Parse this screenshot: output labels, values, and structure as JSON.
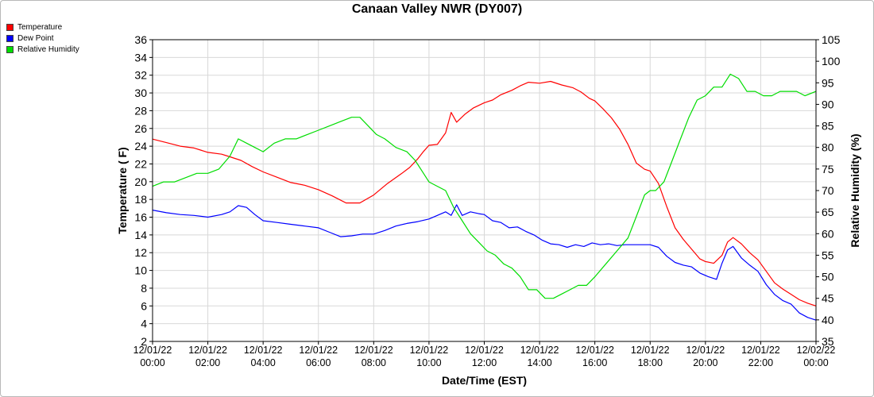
{
  "colors": {
    "temperature": "#ff0000",
    "dew_point": "#0000ff",
    "relative_humidity": "#00dd00",
    "grid": "#d8d8d8"
  },
  "chart_data": {
    "type": "line",
    "title": "Canaan Valley NWR (DY007)",
    "xlabel": "Date/Time (EST)",
    "ylabel_left": "Temperature ( F)",
    "ylabel_right": "Relative Humidity (%)",
    "ylim_left": [
      2,
      36
    ],
    "ylim_right": [
      35,
      105
    ],
    "y_ticks_left": [
      "2",
      "4",
      "6",
      "8",
      "10",
      "12",
      "14",
      "16",
      "18",
      "20",
      "22",
      "24",
      "26",
      "28",
      "30",
      "32",
      "34",
      "36"
    ],
    "y_ticks_right": [
      "35",
      "40",
      "45",
      "50",
      "55",
      "60",
      "65",
      "70",
      "75",
      "80",
      "85",
      "90",
      "95",
      "100",
      "105"
    ],
    "x_ticks": [
      {
        "date": "12/01/22",
        "time": "00:00"
      },
      {
        "date": "12/01/22",
        "time": "02:00"
      },
      {
        "date": "12/01/22",
        "time": "04:00"
      },
      {
        "date": "12/01/22",
        "time": "06:00"
      },
      {
        "date": "12/01/22",
        "time": "08:00"
      },
      {
        "date": "12/01/22",
        "time": "10:00"
      },
      {
        "date": "12/01/22",
        "time": "12:00"
      },
      {
        "date": "12/01/22",
        "time": "14:00"
      },
      {
        "date": "12/01/22",
        "time": "16:00"
      },
      {
        "date": "12/01/22",
        "time": "18:00"
      },
      {
        "date": "12/01/22",
        "time": "20:00"
      },
      {
        "date": "12/01/22",
        "time": "22:00"
      },
      {
        "date": "12/02/22",
        "time": "00:00"
      }
    ],
    "grid": true,
    "legend_position": "top-left",
    "series": [
      {
        "name": "Temperature",
        "axis": "left",
        "color": "#ff0000",
        "points": [
          [
            0,
            24.8
          ],
          [
            0.5,
            24.4
          ],
          [
            1,
            24.0
          ],
          [
            1.5,
            23.8
          ],
          [
            2,
            23.3
          ],
          [
            2.5,
            23.1
          ],
          [
            2.8,
            22.8
          ],
          [
            3.2,
            22.4
          ],
          [
            3.6,
            21.7
          ],
          [
            4,
            21.1
          ],
          [
            4.5,
            20.5
          ],
          [
            5,
            19.9
          ],
          [
            5.5,
            19.6
          ],
          [
            6,
            19.1
          ],
          [
            6.5,
            18.4
          ],
          [
            7,
            17.6
          ],
          [
            7.5,
            17.6
          ],
          [
            8,
            18.5
          ],
          [
            8.5,
            19.8
          ],
          [
            9,
            20.9
          ],
          [
            9.3,
            21.6
          ],
          [
            9.6,
            22.6
          ],
          [
            9.8,
            23.4
          ],
          [
            10,
            24.1
          ],
          [
            10.3,
            24.2
          ],
          [
            10.6,
            25.5
          ],
          [
            10.8,
            27.8
          ],
          [
            11,
            26.7
          ],
          [
            11.3,
            27.6
          ],
          [
            11.6,
            28.3
          ],
          [
            12,
            28.9
          ],
          [
            12.3,
            29.2
          ],
          [
            12.6,
            29.8
          ],
          [
            13,
            30.3
          ],
          [
            13.3,
            30.8
          ],
          [
            13.6,
            31.2
          ],
          [
            14,
            31.1
          ],
          [
            14.4,
            31.3
          ],
          [
            14.8,
            30.9
          ],
          [
            15.2,
            30.6
          ],
          [
            15.5,
            30.1
          ],
          [
            15.8,
            29.4
          ],
          [
            16,
            29.1
          ],
          [
            16.3,
            28.2
          ],
          [
            16.6,
            27.2
          ],
          [
            16.9,
            25.9
          ],
          [
            17.2,
            24.2
          ],
          [
            17.5,
            22.1
          ],
          [
            17.8,
            21.4
          ],
          [
            18,
            21.2
          ],
          [
            18.3,
            19.8
          ],
          [
            18.6,
            17.2
          ],
          [
            18.9,
            14.8
          ],
          [
            19.2,
            13.5
          ],
          [
            19.5,
            12.4
          ],
          [
            19.8,
            11.3
          ],
          [
            20,
            11.0
          ],
          [
            20.3,
            10.8
          ],
          [
            20.6,
            11.7
          ],
          [
            20.8,
            13.2
          ],
          [
            21,
            13.7
          ],
          [
            21.3,
            13.0
          ],
          [
            21.6,
            12.0
          ],
          [
            21.9,
            11.2
          ],
          [
            22.2,
            9.9
          ],
          [
            22.5,
            8.6
          ],
          [
            22.8,
            7.9
          ],
          [
            23.1,
            7.3
          ],
          [
            23.4,
            6.7
          ],
          [
            23.7,
            6.3
          ],
          [
            24,
            6.0
          ]
        ]
      },
      {
        "name": "Dew Point",
        "axis": "left",
        "color": "#0000ff",
        "points": [
          [
            0,
            16.8
          ],
          [
            0.5,
            16.5
          ],
          [
            1,
            16.3
          ],
          [
            1.5,
            16.2
          ],
          [
            2,
            16.0
          ],
          [
            2.5,
            16.3
          ],
          [
            2.8,
            16.6
          ],
          [
            3.1,
            17.3
          ],
          [
            3.4,
            17.1
          ],
          [
            3.7,
            16.3
          ],
          [
            4,
            15.6
          ],
          [
            4.5,
            15.4
          ],
          [
            5,
            15.2
          ],
          [
            5.5,
            15.0
          ],
          [
            6,
            14.8
          ],
          [
            6.4,
            14.3
          ],
          [
            6.8,
            13.8
          ],
          [
            7.2,
            13.9
          ],
          [
            7.6,
            14.1
          ],
          [
            8,
            14.1
          ],
          [
            8.4,
            14.5
          ],
          [
            8.8,
            15.0
          ],
          [
            9.2,
            15.3
          ],
          [
            9.6,
            15.5
          ],
          [
            10,
            15.8
          ],
          [
            10.3,
            16.2
          ],
          [
            10.6,
            16.6
          ],
          [
            10.8,
            16.2
          ],
          [
            11,
            17.4
          ],
          [
            11.2,
            16.2
          ],
          [
            11.5,
            16.6
          ],
          [
            11.8,
            16.4
          ],
          [
            12,
            16.3
          ],
          [
            12.3,
            15.6
          ],
          [
            12.6,
            15.4
          ],
          [
            12.9,
            14.8
          ],
          [
            13.2,
            14.9
          ],
          [
            13.5,
            14.4
          ],
          [
            13.8,
            14.0
          ],
          [
            14.1,
            13.4
          ],
          [
            14.4,
            13.0
          ],
          [
            14.7,
            12.9
          ],
          [
            15,
            12.6
          ],
          [
            15.3,
            12.9
          ],
          [
            15.6,
            12.7
          ],
          [
            15.9,
            13.1
          ],
          [
            16.2,
            12.9
          ],
          [
            16.5,
            13.0
          ],
          [
            16.8,
            12.8
          ],
          [
            17.1,
            12.9
          ],
          [
            17.5,
            12.9
          ],
          [
            18,
            12.9
          ],
          [
            18.3,
            12.6
          ],
          [
            18.6,
            11.6
          ],
          [
            18.9,
            10.9
          ],
          [
            19.2,
            10.6
          ],
          [
            19.5,
            10.4
          ],
          [
            19.8,
            9.7
          ],
          [
            20.1,
            9.3
          ],
          [
            20.4,
            9.0
          ],
          [
            20.6,
            10.8
          ],
          [
            20.8,
            12.3
          ],
          [
            21,
            12.7
          ],
          [
            21.3,
            11.4
          ],
          [
            21.6,
            10.6
          ],
          [
            21.9,
            9.9
          ],
          [
            22.2,
            8.4
          ],
          [
            22.5,
            7.3
          ],
          [
            22.8,
            6.6
          ],
          [
            23.1,
            6.2
          ],
          [
            23.4,
            5.2
          ],
          [
            23.7,
            4.7
          ],
          [
            24,
            4.4
          ]
        ]
      },
      {
        "name": "Relative Humidity",
        "axis": "right",
        "color": "#00dd00",
        "points": [
          [
            0,
            71
          ],
          [
            0.4,
            72
          ],
          [
            0.8,
            72
          ],
          [
            1.2,
            73
          ],
          [
            1.6,
            74
          ],
          [
            2,
            74
          ],
          [
            2.4,
            75
          ],
          [
            2.8,
            78
          ],
          [
            3.1,
            82
          ],
          [
            3.4,
            81
          ],
          [
            3.7,
            80
          ],
          [
            4,
            79
          ],
          [
            4.4,
            81
          ],
          [
            4.8,
            82
          ],
          [
            5.2,
            82
          ],
          [
            5.6,
            83
          ],
          [
            6,
            84
          ],
          [
            6.4,
            85
          ],
          [
            6.8,
            86
          ],
          [
            7.2,
            87
          ],
          [
            7.5,
            87
          ],
          [
            7.8,
            85
          ],
          [
            8.1,
            83
          ],
          [
            8.4,
            82
          ],
          [
            8.8,
            80
          ],
          [
            9.2,
            79
          ],
          [
            9.5,
            77
          ],
          [
            9.8,
            74
          ],
          [
            10,
            72
          ],
          [
            10.3,
            71
          ],
          [
            10.6,
            70
          ],
          [
            10.9,
            66
          ],
          [
            11.2,
            63
          ],
          [
            11.5,
            60
          ],
          [
            11.8,
            58
          ],
          [
            12.1,
            56
          ],
          [
            12.4,
            55
          ],
          [
            12.7,
            53
          ],
          [
            13,
            52
          ],
          [
            13.3,
            50
          ],
          [
            13.6,
            47
          ],
          [
            13.9,
            47
          ],
          [
            14.2,
            45
          ],
          [
            14.5,
            45
          ],
          [
            14.8,
            46
          ],
          [
            15.1,
            47
          ],
          [
            15.4,
            48
          ],
          [
            15.7,
            48
          ],
          [
            16,
            50
          ],
          [
            16.4,
            53
          ],
          [
            16.8,
            56
          ],
          [
            17.2,
            59
          ],
          [
            17.5,
            64
          ],
          [
            17.8,
            69
          ],
          [
            18,
            70
          ],
          [
            18.2,
            70
          ],
          [
            18.5,
            72
          ],
          [
            18.8,
            77
          ],
          [
            19.1,
            82
          ],
          [
            19.4,
            87
          ],
          [
            19.7,
            91
          ],
          [
            20,
            92
          ],
          [
            20.3,
            94
          ],
          [
            20.6,
            94
          ],
          [
            20.9,
            97
          ],
          [
            21.2,
            96
          ],
          [
            21.5,
            93
          ],
          [
            21.8,
            93
          ],
          [
            22.1,
            92
          ],
          [
            22.4,
            92
          ],
          [
            22.7,
            93
          ],
          [
            23,
            93
          ],
          [
            23.3,
            93
          ],
          [
            23.6,
            92
          ],
          [
            24,
            93
          ]
        ]
      }
    ]
  }
}
